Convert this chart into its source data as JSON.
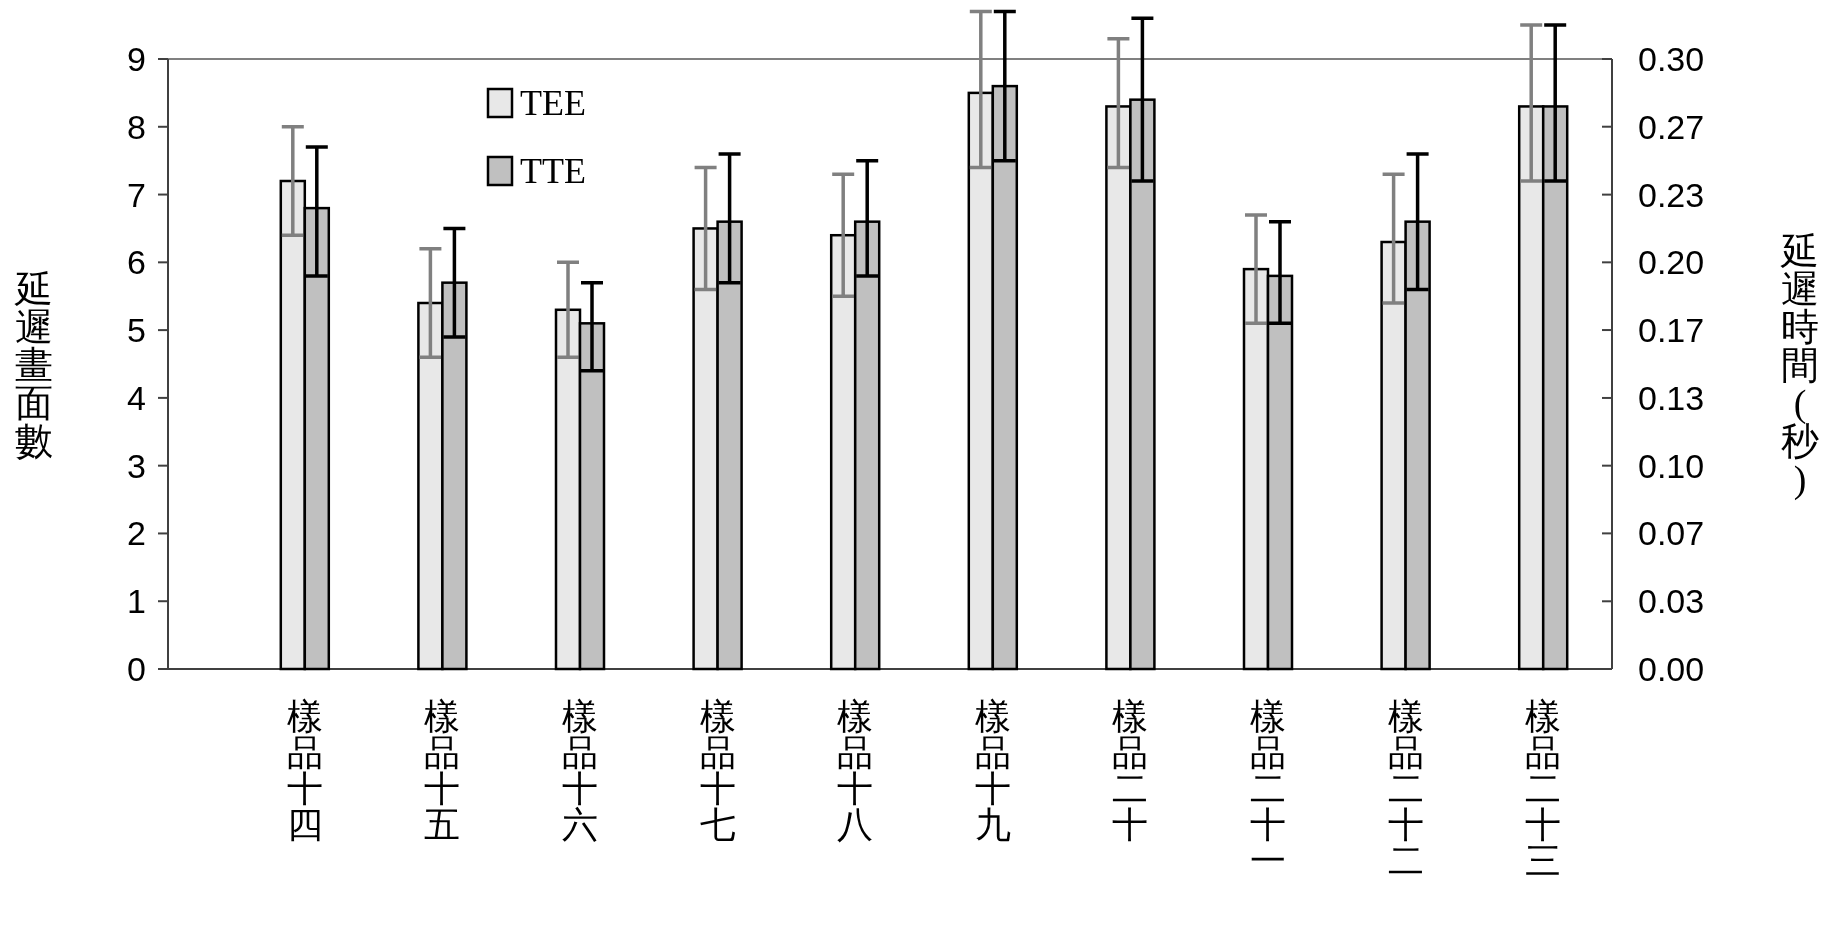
{
  "chart_data": {
    "type": "bar",
    "categories": [
      "樣品十四",
      "樣品十五",
      "樣品十六",
      "樣品十七",
      "樣品十八",
      "樣品十九",
      "樣品二十",
      "樣品二十一",
      "樣品二十二",
      "樣品二十三"
    ],
    "series": [
      {
        "name": "TEE",
        "color": "#e8e8e8",
        "values": [
          7.2,
          5.4,
          5.3,
          6.5,
          6.4,
          8.5,
          8.3,
          5.9,
          6.3,
          8.3
        ],
        "errors": [
          [
            6.4,
            8.0
          ],
          [
            4.6,
            6.2
          ],
          [
            4.6,
            6.0
          ],
          [
            5.6,
            7.4
          ],
          [
            5.5,
            7.3
          ],
          [
            7.4,
            9.7
          ],
          [
            7.4,
            9.3
          ],
          [
            5.1,
            6.7
          ],
          [
            5.4,
            7.3
          ],
          [
            7.2,
            9.5
          ]
        ]
      },
      {
        "name": "TTE",
        "color": "#c0c0c0",
        "values": [
          6.8,
          5.7,
          5.1,
          6.6,
          6.6,
          8.6,
          8.4,
          5.8,
          6.6,
          8.3
        ],
        "errors": [
          [
            5.8,
            7.7
          ],
          [
            4.9,
            6.5
          ],
          [
            4.4,
            5.7
          ],
          [
            5.7,
            7.6
          ],
          [
            5.8,
            7.5
          ],
          [
            7.5,
            9.7
          ],
          [
            7.2,
            9.6
          ],
          [
            5.1,
            6.6
          ],
          [
            5.6,
            7.6
          ],
          [
            7.2,
            9.5
          ]
        ]
      }
    ],
    "ylabel": "延遲畫面數",
    "y2label": "延遲時間(秒)",
    "ylim": [
      0,
      9
    ],
    "yticks": [
      0,
      1,
      2,
      3,
      4,
      5,
      6,
      7,
      8,
      9
    ],
    "y2lim": [
      0,
      0.3
    ],
    "y2ticks": [
      {
        "value": 0,
        "label": "0.00"
      },
      {
        "value": 0.0333,
        "label": "0.03"
      },
      {
        "value": 0.0667,
        "label": "0.07"
      },
      {
        "value": 0.1,
        "label": "0.10"
      },
      {
        "value": 0.1333,
        "label": "0.13"
      },
      {
        "value": 0.1667,
        "label": "0.17"
      },
      {
        "value": 0.2,
        "label": "0.20"
      },
      {
        "value": 0.2333,
        "label": "0.23"
      },
      {
        "value": 0.2667,
        "label": "0.27"
      },
      {
        "value": 0.3,
        "label": "0.30"
      }
    ],
    "legend": "top left"
  }
}
